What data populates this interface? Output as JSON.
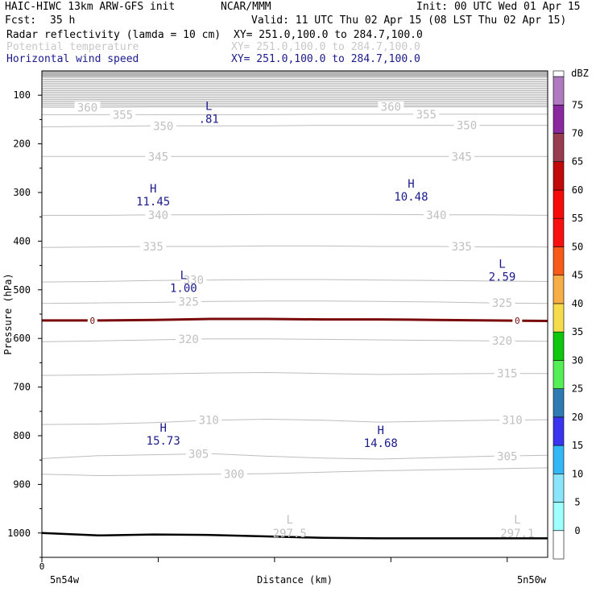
{
  "header": {
    "model": "HAIC-HIWC 13km ARW-GFS init",
    "center": "NCAR/MMM",
    "init": "Init: 00 UTC Wed 01 Apr 15",
    "fcst_label": "Fcst:",
    "fcst_value": "35 h",
    "valid": "Valid: 11 UTC Thu 02 Apr 15 (08 LST Thu 02 Apr 15)"
  },
  "fields": [
    {
      "name": "Radar reflectivity (lamda = 10 cm)",
      "xy": "XY= 251.0,100.0 to 284.7,100.0",
      "color": "#000000"
    },
    {
      "name": "Potential temperature",
      "xy": "XY= 251.0,100.0 to 284.7,100.0",
      "color": "#c8c8c8"
    },
    {
      "name": "Horizontal wind speed",
      "xy": "XY= 251.0,100.0 to 284.7,100.0",
      "color": "#1a1a8c"
    }
  ],
  "chart_data": {
    "type": "cross-section",
    "ylabel": "Pressure (hPa)",
    "xlabel": "Distance (km)",
    "y_ticks": [
      100,
      200,
      300,
      400,
      500,
      600,
      700,
      800,
      900,
      1000
    ],
    "ylim": [
      1050,
      50
    ],
    "x_tick_label": "0",
    "x_start_label": "5n54w",
    "x_end_label": "5n50w",
    "colorbar": {
      "unit": "dBZ",
      "levels": [
        0,
        5,
        10,
        15,
        20,
        25,
        30,
        35,
        40,
        45,
        50,
        55,
        60,
        65,
        70,
        75
      ],
      "colors": [
        "#ffffff",
        "#9ffefe",
        "#8ae4fa",
        "#32b8f6",
        "#3a34f0",
        "#2e7ab2",
        "#54ef54",
        "#0ec80e",
        "#f6dc4c",
        "#f8ae47",
        "#f85a18",
        "#f81010",
        "#f60a0a",
        "#c20808",
        "#9a3c50",
        "#8a28a0",
        "#b07ac0"
      ]
    },
    "theta_contours": [
      {
        "value": 300,
        "label": "300",
        "p": [
          879,
          882,
          881,
          879,
          878,
          875,
          872,
          870,
          868,
          866
        ]
      },
      {
        "value": 305,
        "label": "305",
        "p": [
          847,
          841,
          839,
          837,
          842,
          846,
          848,
          845,
          842,
          840
        ]
      },
      {
        "value": 310,
        "label": "310",
        "p": [
          777,
          776,
          773,
          768,
          766,
          768,
          772,
          770,
          768,
          767
        ]
      },
      {
        "value": 315,
        "label": "315",
        "p": [
          676,
          675,
          673,
          671,
          670,
          672,
          674,
          673,
          672,
          672
        ]
      },
      {
        "value": 320,
        "label": "320",
        "p": [
          607,
          605,
          603,
          601,
          601,
          602,
          603,
          604,
          605,
          606
        ]
      },
      {
        "value": 325,
        "label": "325",
        "p": [
          528,
          527,
          526,
          524,
          523,
          523,
          524,
          525,
          527,
          528
        ]
      },
      {
        "value": 330,
        "label": "330",
        "p": [
          484,
          483,
          481,
          480,
          479,
          479,
          480,
          481,
          482,
          483
        ]
      },
      {
        "value": 335,
        "label": "335",
        "p": [
          413,
          412,
          411,
          411,
          410,
          410,
          411,
          411,
          412,
          412
        ]
      },
      {
        "value": 340,
        "label": "340",
        "p": [
          347,
          347,
          346,
          346,
          345,
          345,
          345,
          346,
          346,
          347
        ]
      },
      {
        "value": 345,
        "label": "345",
        "p": [
          226,
          226,
          226,
          226,
          226,
          226,
          226,
          226,
          226,
          226
        ]
      },
      {
        "value": 350,
        "label": "350",
        "p": [
          165,
          164,
          163,
          163,
          163,
          162,
          162,
          162,
          162,
          162
        ]
      },
      {
        "value": 355,
        "label": "355",
        "p": [
          140,
          140,
          140,
          140,
          140,
          139,
          139,
          139,
          139,
          139
        ]
      },
      {
        "value": 360,
        "label": "360",
        "p": [
          125,
          125,
          124,
          124,
          124,
          124,
          124,
          124,
          124,
          124
        ]
      }
    ],
    "reflectivity_zero_contour": {
      "label": "0",
      "p": [
        563,
        563,
        562,
        560,
        560,
        561,
        561,
        562,
        563,
        564
      ]
    },
    "terrain": {
      "p": [
        1000,
        1005,
        1003,
        1004,
        1007,
        1010,
        1011,
        1011,
        1011,
        1011
      ]
    },
    "wind_extrema": [
      {
        "type": "L",
        "value": ".81",
        "x": 0.33,
        "p": 140
      },
      {
        "type": "H",
        "value": "11.45",
        "x": 0.22,
        "p": 310
      },
      {
        "type": "H",
        "value": "10.48",
        "x": 0.73,
        "p": 300
      },
      {
        "type": "L",
        "value": "1.00",
        "x": 0.28,
        "p": 488
      },
      {
        "type": "L",
        "value": "2.59",
        "x": 0.91,
        "p": 465
      },
      {
        "type": "H",
        "value": "15.73",
        "x": 0.24,
        "p": 802
      },
      {
        "type": "H",
        "value": "14.68",
        "x": 0.67,
        "p": 807
      }
    ],
    "theta_extrema": [
      {
        "type": "L",
        "value": "297.5",
        "x": 0.49,
        "p": 1000
      },
      {
        "type": "L",
        "value": "297.1",
        "x": 0.94,
        "p": 1000
      }
    ]
  }
}
